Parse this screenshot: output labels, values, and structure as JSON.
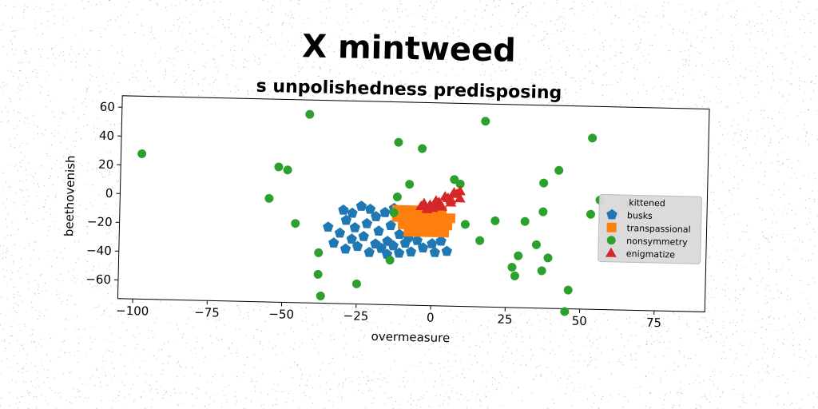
{
  "chart_data": {
    "type": "scatter",
    "title": "X mintweed",
    "subtitle": "s unpolishedness predisposing",
    "xlabel": "overmeasure",
    "ylabel": "beethovenish",
    "xlim": [
      -105,
      92
    ],
    "ylim": [
      -73,
      68
    ],
    "xticks": [
      -100,
      -75,
      -50,
      -25,
      0,
      25,
      50,
      75
    ],
    "yticks": [
      -60,
      -40,
      -20,
      0,
      20,
      40,
      60
    ],
    "grid": false,
    "legend_position": "right",
    "legend_title": "kittened",
    "series": [
      {
        "name": "busks",
        "marker": "pentagon",
        "color": "#1f77b4",
        "points": [
          [
            -30,
            -8
          ],
          [
            -27,
            -10
          ],
          [
            -24,
            -5
          ],
          [
            -21,
            -7
          ],
          [
            -19,
            -12
          ],
          [
            -16,
            -9
          ],
          [
            -13,
            -6
          ],
          [
            -29,
            -15
          ],
          [
            -26,
            -20
          ],
          [
            -22,
            -17
          ],
          [
            -18,
            -22
          ],
          [
            -14,
            -18
          ],
          [
            -31,
            -24
          ],
          [
            -27,
            -28
          ],
          [
            -23,
            -26
          ],
          [
            -19,
            -31
          ],
          [
            -15,
            -29
          ],
          [
            -11,
            -24
          ],
          [
            -33,
            -31
          ],
          [
            -29,
            -35
          ],
          [
            -25,
            -33
          ],
          [
            -21,
            -37
          ],
          [
            -17,
            -34
          ],
          [
            -13,
            -32
          ],
          [
            -9,
            -30
          ],
          [
            -5,
            -28
          ],
          [
            -11,
            -37
          ],
          [
            -7,
            -36
          ],
          [
            -3,
            -33
          ],
          [
            0,
            -30
          ],
          [
            1,
            -36
          ],
          [
            3,
            -28
          ],
          [
            5,
            -35
          ],
          [
            -35,
            -20
          ],
          [
            -15,
            -38
          ],
          [
            -8,
            -26
          ]
        ]
      },
      {
        "name": "transpassional",
        "marker": "square",
        "color": "#ff7f0e",
        "points": [
          [
            -12,
            -7
          ],
          [
            -9,
            -7
          ],
          [
            -6,
            -7
          ],
          [
            -3,
            -7
          ],
          [
            0,
            -7
          ],
          [
            3,
            -7
          ],
          [
            -12,
            -12
          ],
          [
            -9,
            -12
          ],
          [
            -6,
            -12
          ],
          [
            -3,
            -12
          ],
          [
            0,
            -12
          ],
          [
            3,
            -12
          ],
          [
            6,
            -12
          ],
          [
            -10,
            -17
          ],
          [
            -7,
            -17
          ],
          [
            -4,
            -17
          ],
          [
            -1,
            -17
          ],
          [
            2,
            -17
          ],
          [
            5,
            -17
          ],
          [
            -8,
            -22
          ],
          [
            -5,
            -22
          ],
          [
            -2,
            -22
          ],
          [
            1,
            -22
          ],
          [
            4,
            -22
          ]
        ]
      },
      {
        "name": "nonsymmetry",
        "marker": "circle",
        "color": "#2ca02c",
        "points": [
          [
            -98,
            28
          ],
          [
            -42,
            58
          ],
          [
            -52,
            21
          ],
          [
            -49,
            19
          ],
          [
            -55,
            -1
          ],
          [
            -46,
            -18
          ],
          [
            -38,
            -38
          ],
          [
            -38,
            -53
          ],
          [
            -37,
            -68
          ],
          [
            -25,
            -59
          ],
          [
            -12,
            40
          ],
          [
            -4,
            36
          ],
          [
            -8,
            11
          ],
          [
            -12,
            2
          ],
          [
            -13,
            -9
          ],
          [
            -14,
            -42
          ],
          [
            7,
            15
          ],
          [
            9,
            12
          ],
          [
            17,
            56
          ],
          [
            11,
            -16
          ],
          [
            16,
            -27
          ],
          [
            21,
            -13
          ],
          [
            31,
            -13
          ],
          [
            29,
            -37
          ],
          [
            27,
            -45
          ],
          [
            28,
            -51
          ],
          [
            35,
            -29
          ],
          [
            37,
            -47
          ],
          [
            39,
            -38
          ],
          [
            37,
            -6
          ],
          [
            37,
            14
          ],
          [
            42,
            23
          ],
          [
            53,
            46
          ],
          [
            53,
            -7
          ],
          [
            56,
            3
          ],
          [
            46,
            -60
          ],
          [
            45,
            -75
          ],
          [
            66,
            1
          ]
        ]
      },
      {
        "name": "enigmatize",
        "marker": "triangle",
        "color": "#d62728",
        "points": [
          [
            -4,
            -4
          ],
          [
            -1,
            -3
          ],
          [
            2,
            -1
          ],
          [
            5,
            2
          ],
          [
            8,
            5
          ],
          [
            -3,
            -2
          ],
          [
            1,
            0
          ],
          [
            4,
            3
          ],
          [
            7,
            6
          ],
          [
            0,
            -5
          ],
          [
            3,
            -4
          ],
          [
            6,
            -1
          ],
          [
            9,
            2
          ],
          [
            -2,
            -6
          ],
          [
            2,
            -3
          ],
          [
            6,
            1
          ],
          [
            9,
            7
          ]
        ]
      }
    ]
  }
}
